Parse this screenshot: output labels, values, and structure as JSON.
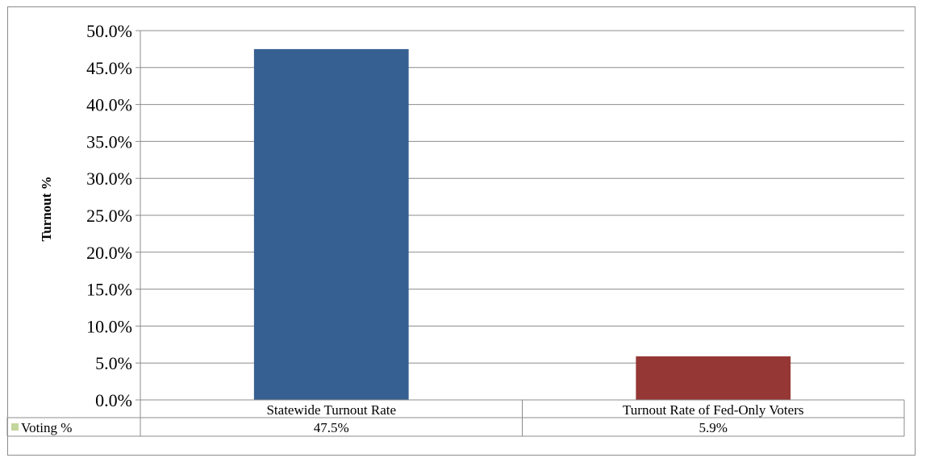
{
  "chart_data": {
    "type": "bar",
    "ylabel": "Turnout %",
    "xlabel": "",
    "categories": [
      "Statewide Turnout Rate",
      "Turnout Rate of Fed-Only Voters"
    ],
    "series": [
      {
        "name": "Voting %",
        "values": [
          47.5,
          5.9
        ],
        "labels": [
          "47.5%",
          "5.9%"
        ],
        "legend_color": "#c3d69b"
      }
    ],
    "bar_colors": [
      "#376092",
      "#953735"
    ],
    "ylim": [
      0,
      50
    ],
    "yticks": [
      0,
      5,
      10,
      15,
      20,
      25,
      30,
      35,
      40,
      45,
      50
    ],
    "ytick_labels": [
      "0.0%",
      "5.0%",
      "10.0%",
      "15.0%",
      "20.0%",
      "25.0%",
      "30.0%",
      "35.0%",
      "40.0%",
      "45.0%",
      "50.0%"
    ],
    "grid": true,
    "legend": "data-table"
  }
}
